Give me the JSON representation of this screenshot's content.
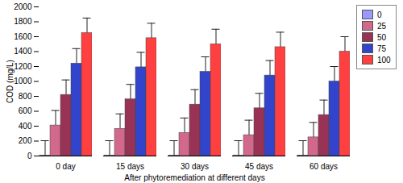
{
  "chart_data": {
    "type": "bar",
    "categories": [
      "0 day",
      "15 days",
      "30 days",
      "45 days",
      "60 days"
    ],
    "x_label": "After phytoremediation at different days",
    "y_label": "COD (mg/L)",
    "ylim": [
      0,
      2000
    ],
    "yticks": [
      0,
      200,
      400,
      600,
      800,
      1000,
      1200,
      1400,
      1600,
      1800,
      2000
    ],
    "legend": "right",
    "series": [
      {
        "name": "0",
        "color": "#9999ff",
        "values": [
          5,
          5,
          5,
          5,
          5
        ],
        "errors": [
          200,
          200,
          200,
          200,
          200
        ]
      },
      {
        "name": "25",
        "color": "#d2698c",
        "values": [
          410,
          365,
          310,
          280,
          250
        ],
        "errors": [
          200,
          200,
          200,
          200,
          200
        ]
      },
      {
        "name": "50",
        "color": "#993355",
        "values": [
          820,
          760,
          690,
          640,
          550
        ],
        "errors": [
          200,
          200,
          200,
          200,
          200
        ]
      },
      {
        "name": "75",
        "color": "#3344cc",
        "values": [
          1240,
          1190,
          1130,
          1080,
          1000
        ],
        "errors": [
          200,
          200,
          200,
          200,
          200
        ]
      },
      {
        "name": "100",
        "color": "#ff4040",
        "values": [
          1650,
          1580,
          1500,
          1460,
          1400
        ],
        "errors": [
          200,
          200,
          200,
          200,
          200
        ]
      }
    ]
  }
}
